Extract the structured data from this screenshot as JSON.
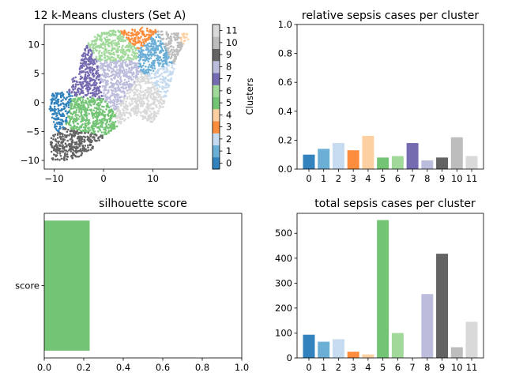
{
  "chart_data": [
    {
      "type": "scatter",
      "title": "12 k-Means clusters (Set A)",
      "xlim": [
        -12,
        19
      ],
      "ylim": [
        -11.5,
        13.5
      ],
      "xticks": [
        -10,
        0,
        10
      ],
      "yticks": [
        -10,
        -5,
        0,
        5,
        10
      ],
      "colorbar": {
        "label": "Clusters",
        "ticks": [
          0,
          1,
          2,
          3,
          4,
          5,
          6,
          7,
          8,
          9,
          10,
          11
        ],
        "colors": [
          "#3182bd",
          "#6baed6",
          "#c6dbef",
          "#fd8d3c",
          "#fdd0a2",
          "#74c476",
          "#a1d99b",
          "#756bb1",
          "#bcbddc",
          "#636363",
          "#bdbdbd",
          "#d9d9d9"
        ]
      },
      "clusters": [
        {
          "id": 0,
          "center": [
            -9,
            -1
          ]
        },
        {
          "id": 1,
          "center": [
            11,
            8
          ]
        },
        {
          "id": 2,
          "center": [
            12.5,
            4
          ]
        },
        {
          "id": 3,
          "center": [
            6.5,
            13
          ]
        },
        {
          "id": 4,
          "center": [
            17,
            11
          ]
        },
        {
          "id": 5,
          "center": [
            -5,
            -2
          ]
        },
        {
          "id": 6,
          "center": [
            3,
            9
          ]
        },
        {
          "id": 7,
          "center": [
            -4.5,
            4
          ]
        },
        {
          "id": 8,
          "center": [
            3,
            5.5
          ]
        },
        {
          "id": 9,
          "center": [
            -6,
            -7.5
          ]
        },
        {
          "id": 10,
          "center": [
            14.5,
            10
          ]
        },
        {
          "id": 11,
          "center": [
            9,
            1
          ]
        }
      ]
    },
    {
      "type": "bar",
      "title": "relative sepsis cases per cluster",
      "categories": [
        "0",
        "1",
        "2",
        "3",
        "4",
        "5",
        "6",
        "7",
        "8",
        "9",
        "10",
        "11"
      ],
      "values": [
        0.1,
        0.14,
        0.18,
        0.13,
        0.23,
        0.08,
        0.09,
        0.18,
        0.06,
        0.08,
        0.22,
        0.09
      ],
      "ylim": [
        0,
        1.0
      ],
      "yticks": [
        "0.0",
        "0.2",
        "0.4",
        "0.6",
        "0.8",
        "1.0"
      ],
      "colors": [
        "#3182bd",
        "#6baed6",
        "#c6dbef",
        "#fd8d3c",
        "#fdd0a2",
        "#74c476",
        "#a1d99b",
        "#756bb1",
        "#bcbddc",
        "#636363",
        "#bdbdbd",
        "#d9d9d9"
      ]
    },
    {
      "type": "bar",
      "orientation": "horizontal",
      "title": "silhouette score",
      "categories": [
        "score"
      ],
      "values": [
        0.23
      ],
      "xlim": [
        0,
        1.0
      ],
      "xticks": [
        "0.0",
        "0.2",
        "0.4",
        "0.6",
        "0.8",
        "1.0"
      ],
      "colors": [
        "#74c476"
      ]
    },
    {
      "type": "bar",
      "title": "total sepsis cases per cluster",
      "categories": [
        "0",
        "1",
        "2",
        "3",
        "4",
        "5",
        "6",
        "7",
        "8",
        "9",
        "10",
        "11"
      ],
      "values": [
        93,
        65,
        75,
        25,
        14,
        553,
        100,
        0,
        256,
        418,
        43,
        145
      ],
      "ylim": [
        0,
        580
      ],
      "yticks": [
        0,
        100,
        200,
        300,
        400,
        500
      ],
      "colors": [
        "#3182bd",
        "#6baed6",
        "#c6dbef",
        "#fd8d3c",
        "#fdd0a2",
        "#74c476",
        "#a1d99b",
        "#756bb1",
        "#bcbddc",
        "#636363",
        "#bdbdbd",
        "#d9d9d9"
      ]
    }
  ]
}
